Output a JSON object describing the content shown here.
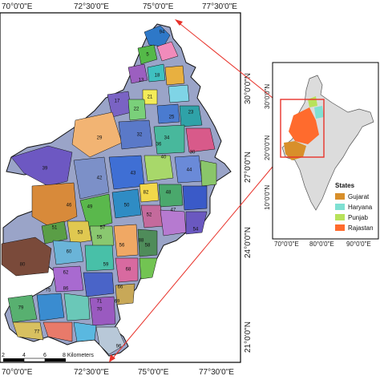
{
  "main_map": {
    "top_ticks": [
      "70°0'0\"E",
      "72°30'0\"E",
      "75°0'0\"E",
      "77°30'0\"E"
    ],
    "bottom_ticks": [
      "70°0'0\"E",
      "72°30'0\"E",
      "75°0'0\"E",
      "77°30'0\"E"
    ],
    "right_ticks": [
      "30°0'0\"N",
      "27°0'0\"N",
      "24°0'0\"N",
      "21°0'0\"N"
    ],
    "region_labels": [
      "94",
      "5",
      "13",
      "18",
      "21",
      "17",
      "22",
      "25",
      "29",
      "32",
      "34",
      "23",
      "30",
      "39",
      "42",
      "43",
      "36",
      "40",
      "44",
      "46",
      "49",
      "50",
      "47",
      "82",
      "48",
      "52",
      "54",
      "51",
      "53",
      "57",
      "55",
      "56",
      "58",
      "60",
      "59",
      "62",
      "68",
      "80",
      "66",
      "69",
      "75",
      "77",
      "70",
      "79",
      "86",
      "88",
      "96",
      "71"
    ],
    "scale_bar": {
      "labels": [
        "2",
        "4",
        "6",
        "8 Kilometers"
      ]
    }
  },
  "inset_map": {
    "bottom_ticks": [
      "70°0'0\"E",
      "80°0'0\"E",
      "90°0'0\"E"
    ],
    "left_ticks": [
      "30°0'0\"N",
      "20°0'0\"N",
      "10°0'0\"N"
    ],
    "legend": {
      "title": "States",
      "items": [
        {
          "label": "Gujarat",
          "color": "#d88f2a"
        },
        {
          "label": "Haryana",
          "color": "#7fe0d2"
        },
        {
          "label": "Punjab",
          "color": "#b8e25a"
        },
        {
          "label": "Rajastan",
          "color": "#ff6b2d"
        }
      ]
    }
  },
  "colors": {
    "connector": "#e8322a",
    "frame": "#000000"
  }
}
